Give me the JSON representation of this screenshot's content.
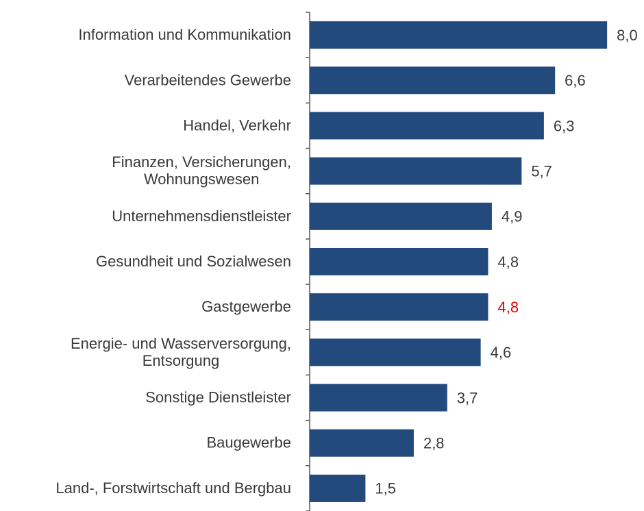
{
  "chart_data": {
    "type": "hbar",
    "categories": [
      "Information und Kommunikation",
      "Verarbeitendes Gewerbe",
      "Handel, Verkehr",
      "Finanzen, Versicherungen,\nWohnungswesen",
      "Unternehmensdienstleister",
      "Gesundheit und Sozialwesen",
      "Gastgewerbe",
      "Energie- und Wasserversorgung,\nEntsorgung",
      "Sonstige Dienstleister",
      "Baugewerbe",
      "Land-, Forstwirtschaft und Bergbau"
    ],
    "values": [
      8.0,
      6.6,
      6.3,
      5.7,
      4.9,
      4.8,
      4.8,
      4.6,
      3.7,
      2.8,
      1.5
    ],
    "value_labels": [
      "8,0",
      "6,6",
      "6,3",
      "5,7",
      "4,9",
      "4,8",
      "4,8",
      "4,6",
      "3,7",
      "2,8",
      "1,5"
    ],
    "value_label_colors": [
      "#3a3a3a",
      "#3a3a3a",
      "#3a3a3a",
      "#3a3a3a",
      "#3a3a3a",
      "#3a3a3a",
      "#e00000",
      "#3a3a3a",
      "#3a3a3a",
      "#3a3a3a",
      "#3a3a3a"
    ],
    "color": "#234a7d",
    "xlim": [
      0,
      8.9
    ]
  }
}
